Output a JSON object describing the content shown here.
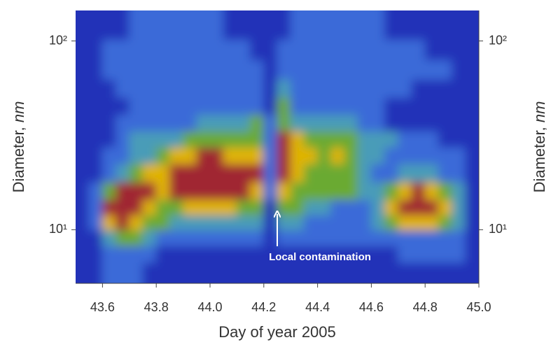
{
  "chart_data": {
    "type": "heatmap",
    "xlabel": "Day of year 2005",
    "ylabel": {
      "text": "Diameter,",
      "unit": "nm"
    },
    "annotation": "Local contamination",
    "ylog": true,
    "xlim": [
      43.5,
      45.0
    ],
    "xticks": [
      43.6,
      43.8,
      {
        "value": 44.0,
        "label": "44.0"
      },
      44.2,
      44.4,
      44.6,
      44.8,
      {
        "value": 45.0,
        "label": "45.0"
      }
    ],
    "ylim": [
      5.2,
      145
    ],
    "yticks": [
      {
        "value": 10,
        "label": "10¹"
      },
      {
        "value": 100,
        "label": "10²"
      }
    ],
    "colors": [
      "#2233b8",
      "#3a6ad8",
      "#4a9cb8",
      "#6aaa30",
      "#e0b400",
      "#a02830"
    ],
    "x": [
      43.525,
      43.575,
      43.625,
      43.675,
      43.725,
      43.775,
      43.825,
      43.875,
      43.925,
      43.975,
      44.025,
      44.075,
      44.125,
      44.175,
      44.225,
      44.275,
      44.325,
      44.375,
      44.425,
      44.475,
      44.525,
      44.575,
      44.625,
      44.675,
      44.725,
      44.775,
      44.825,
      44.875,
      44.925,
      44.975
    ],
    "y": [
      6,
      7.5,
      9,
      11,
      13,
      16,
      20,
      25,
      30,
      37,
      45,
      56,
      70,
      90,
      115
    ],
    "z": [
      [
        0,
        0,
        1,
        1,
        1,
        0,
        0,
        0,
        0,
        0,
        0,
        0,
        0,
        0,
        0,
        0,
        0,
        0,
        0,
        0,
        0,
        0,
        0,
        0,
        0,
        0,
        0,
        0,
        0,
        0
      ],
      [
        0,
        0,
        1,
        1,
        1,
        1,
        0,
        0,
        0,
        0,
        0,
        0,
        0,
        0,
        0,
        0,
        0,
        0,
        0,
        0,
        0,
        0,
        0,
        0,
        1,
        1,
        1,
        1,
        1,
        0
      ],
      [
        0,
        0,
        2,
        3,
        3,
        2,
        1,
        1,
        1,
        1,
        1,
        1,
        1,
        1,
        0,
        1,
        1,
        1,
        1,
        1,
        1,
        1,
        1,
        1,
        1,
        1,
        1,
        1,
        1,
        0
      ],
      [
        0,
        1,
        4,
        5,
        4,
        3,
        3,
        2,
        2,
        2,
        2,
        2,
        2,
        2,
        0,
        2,
        2,
        1,
        1,
        1,
        1,
        1,
        2,
        3,
        4,
        4,
        4,
        3,
        2,
        0
      ],
      [
        0,
        1,
        5,
        5,
        5,
        4,
        3,
        3,
        4,
        4,
        4,
        4,
        3,
        3,
        0,
        3,
        3,
        2,
        2,
        1,
        1,
        1,
        2,
        4,
        5,
        5,
        5,
        4,
        2,
        0
      ],
      [
        0,
        1,
        3,
        5,
        5,
        5,
        4,
        5,
        5,
        5,
        5,
        5,
        5,
        4,
        1,
        4,
        3,
        3,
        3,
        3,
        3,
        2,
        2,
        3,
        4,
        5,
        4,
        3,
        2,
        0
      ],
      [
        0,
        0,
        1,
        2,
        3,
        4,
        4,
        5,
        5,
        5,
        5,
        5,
        5,
        5,
        1,
        5,
        4,
        3,
        3,
        3,
        3,
        2,
        1,
        1,
        2,
        2,
        2,
        1,
        1,
        0
      ],
      [
        0,
        0,
        1,
        1,
        2,
        2,
        3,
        4,
        4,
        5,
        5,
        4,
        4,
        4,
        1,
        5,
        4,
        4,
        3,
        4,
        3,
        2,
        2,
        1,
        1,
        1,
        1,
        1,
        1,
        0
      ],
      [
        0,
        0,
        0,
        1,
        2,
        2,
        2,
        2,
        3,
        3,
        3,
        3,
        3,
        3,
        1,
        5,
        4,
        3,
        3,
        3,
        3,
        2,
        2,
        2,
        1,
        1,
        1,
        0,
        0,
        0
      ],
      [
        0,
        0,
        0,
        1,
        1,
        1,
        1,
        1,
        1,
        2,
        2,
        2,
        2,
        3,
        1,
        3,
        2,
        2,
        2,
        2,
        2,
        1,
        1,
        0,
        0,
        0,
        0,
        0,
        0,
        0
      ],
      [
        0,
        0,
        0,
        0,
        1,
        1,
        1,
        1,
        1,
        1,
        1,
        1,
        1,
        1,
        0,
        3,
        1,
        1,
        1,
        1,
        1,
        1,
        1,
        0,
        0,
        0,
        0,
        0,
        0,
        0
      ],
      [
        0,
        0,
        0,
        1,
        1,
        1,
        1,
        1,
        1,
        1,
        1,
        1,
        1,
        1,
        0,
        2,
        1,
        1,
        1,
        1,
        1,
        1,
        1,
        1,
        1,
        0,
        0,
        0,
        0,
        0
      ],
      [
        0,
        0,
        1,
        1,
        1,
        1,
        1,
        1,
        1,
        1,
        1,
        1,
        1,
        1,
        0,
        1,
        1,
        1,
        1,
        1,
        1,
        1,
        1,
        1,
        1,
        1,
        1,
        1,
        0,
        0
      ],
      [
        0,
        0,
        1,
        1,
        1,
        1,
        1,
        1,
        1,
        1,
        1,
        1,
        1,
        0,
        0,
        1,
        1,
        1,
        1,
        1,
        1,
        1,
        1,
        1,
        1,
        1,
        0,
        0,
        0,
        0
      ],
      [
        0,
        0,
        0,
        0,
        1,
        1,
        1,
        1,
        1,
        1,
        1,
        0,
        0,
        0,
        0,
        0,
        1,
        1,
        1,
        1,
        1,
        1,
        1,
        0,
        0,
        0,
        0,
        0,
        0,
        0
      ]
    ]
  }
}
